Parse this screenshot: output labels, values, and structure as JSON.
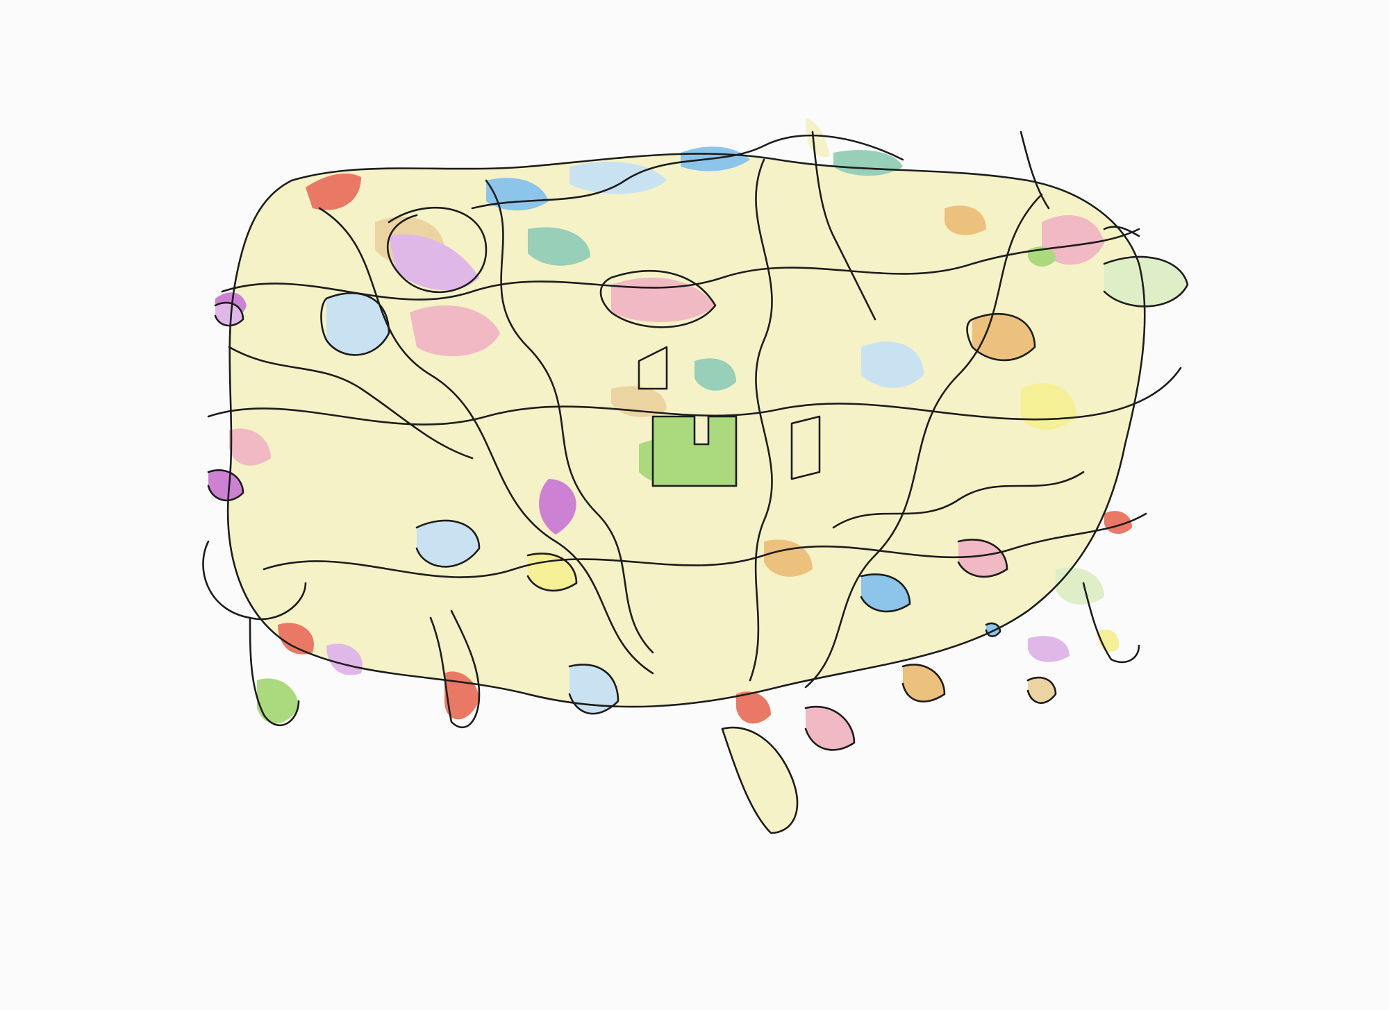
{
  "artwork": {
    "subject": "abstract-scribble-drawing",
    "medium": "ink-and-colored-pencil",
    "paper_color": "#fbfbfb",
    "line_color": "#1c1c1c",
    "palette": {
      "yellow": "#f4ec7a",
      "pale_yellow": "#f3f0b8",
      "orange": "#e9b25a",
      "tan": "#e8c98a",
      "red": "#e4553c",
      "pink": "#eea7b4",
      "magenta": "#c160c9",
      "lavender": "#d9a6e3",
      "blue": "#6fb5e4",
      "light_blue": "#bcdcf0",
      "green": "#95d15c",
      "pale_green": "#d6ebb8",
      "teal": "#7cc3a6"
    }
  }
}
